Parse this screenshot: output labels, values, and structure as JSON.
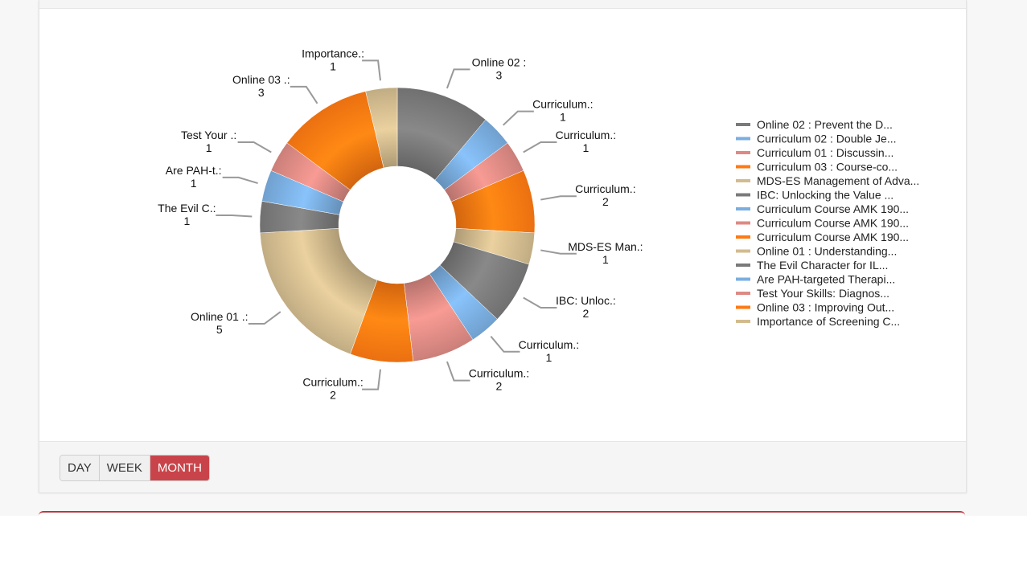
{
  "controls": {
    "buttons": [
      {
        "label": "DAY",
        "active": false
      },
      {
        "label": "WEEK",
        "active": false
      },
      {
        "label": "MONTH",
        "active": true
      }
    ]
  },
  "colors": {
    "gray": "#7a7a7a",
    "blue": "#7aaee0",
    "salmon": "#dd8a84",
    "orange": "#ff7a12",
    "tan": "#d2bb8e",
    "active_button": "#c9444a"
  },
  "chart_data": {
    "type": "pie",
    "donut": true,
    "title": "",
    "legend_position": "right",
    "slices": [
      {
        "label": "Online 02 :",
        "value": 3,
        "color": "gray"
      },
      {
        "label": "Curriculum.:",
        "value": 1,
        "color": "blue"
      },
      {
        "label": "Curriculum.:",
        "value": 1,
        "color": "salmon"
      },
      {
        "label": "Curriculum.:",
        "value": 2,
        "color": "orange"
      },
      {
        "label": "MDS-ES Man.:",
        "value": 1,
        "color": "tan"
      },
      {
        "label": "IBC: Unloc.:",
        "value": 2,
        "color": "gray"
      },
      {
        "label": "Curriculum.:",
        "value": 1,
        "color": "blue"
      },
      {
        "label": "Curriculum.:",
        "value": 2,
        "color": "salmon"
      },
      {
        "label": "Curriculum.:",
        "value": 2,
        "color": "orange"
      },
      {
        "label": "Online 01 .:",
        "value": 5,
        "color": "tan"
      },
      {
        "label": "The Evil C.:",
        "value": 1,
        "color": "gray"
      },
      {
        "label": "Are PAH-t.:",
        "value": 1,
        "color": "blue"
      },
      {
        "label": "Test Your .:",
        "value": 1,
        "color": "salmon"
      },
      {
        "label": "Online 03 .:",
        "value": 3,
        "color": "orange"
      },
      {
        "label": "Importance.:",
        "value": 1,
        "color": "tan"
      }
    ],
    "legend": [
      {
        "label": "Online 02 : Prevent the D...",
        "color": "gray"
      },
      {
        "label": "Curriculum 02 : Double Je...",
        "color": "blue"
      },
      {
        "label": "Curriculum 01 : Discussin...",
        "color": "salmon"
      },
      {
        "label": "Curriculum 03 : Course-co...",
        "color": "orange"
      },
      {
        "label": "MDS-ES Management of Adva...",
        "color": "tan"
      },
      {
        "label": "IBC: Unlocking the Value ...",
        "color": "gray"
      },
      {
        "label": "Curriculum Course AMK 190...",
        "color": "blue"
      },
      {
        "label": "Curriculum Course AMK 190...",
        "color": "salmon"
      },
      {
        "label": "Curriculum Course AMK 190...",
        "color": "orange"
      },
      {
        "label": "Online 01 : Understanding...",
        "color": "tan"
      },
      {
        "label": "The Evil Character for IL...",
        "color": "gray"
      },
      {
        "label": "Are PAH-targeted Therapi...",
        "color": "blue"
      },
      {
        "label": "Test Your Skills: Diagnos...",
        "color": "salmon"
      },
      {
        "label": "Online 03 : Improving Out...",
        "color": "orange"
      },
      {
        "label": "Importance of Screening C...",
        "color": "tan"
      }
    ]
  }
}
